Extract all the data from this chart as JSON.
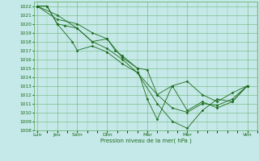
{
  "background_color": "#c5e8e8",
  "grid_color": "#55aa55",
  "line_color": "#1a6a1a",
  "marker_color": "#1a6a1a",
  "xlabel_text": "Pression niveau de la mer( hPa )",
  "ylim": [
    1008,
    1022.5
  ],
  "yticks": [
    1008,
    1009,
    1010,
    1011,
    1012,
    1013,
    1014,
    1015,
    1016,
    1017,
    1018,
    1019,
    1020,
    1021,
    1022
  ],
  "x_labels": [
    "Lun",
    "Jeu",
    "Sam",
    "Dim",
    "Mar",
    "Mer",
    "Ven"
  ],
  "x_major_ticks": [
    0,
    2,
    4,
    7,
    11,
    15,
    21
  ],
  "xlim": [
    -0.3,
    22.0
  ],
  "series": [
    {
      "x": [
        0,
        2,
        4,
        5.5,
        7,
        8.5,
        10,
        11,
        12,
        13.5,
        15,
        16.5,
        18,
        19.5,
        21
      ],
      "y": [
        1022,
        1021,
        1019.5,
        1018,
        1018.3,
        1016.2,
        1015,
        1011.5,
        1009.2,
        1013,
        1013.5,
        1012,
        1011.2,
        1012.2,
        1013
      ]
    },
    {
      "x": [
        0,
        2,
        4,
        5.5,
        7,
        7.8,
        8.5,
        10,
        11,
        12,
        13.5,
        15,
        16.5,
        18,
        19.5,
        21
      ],
      "y": [
        1022,
        1020.5,
        1020,
        1019,
        1018.3,
        1017,
        1016.4,
        1015,
        1014.8,
        1012,
        1013,
        1010.2,
        1011.2,
        1010.5,
        1011.2,
        1013
      ]
    },
    {
      "x": [
        0,
        1.0,
        2,
        2.8,
        4,
        5.5,
        7,
        8.5,
        10,
        12,
        13.5,
        15,
        16.5,
        18,
        19.5,
        21
      ],
      "y": [
        1022,
        1022,
        1020,
        1019.8,
        1019.5,
        1018,
        1017.2,
        1016,
        1014.5,
        1011,
        1009,
        1008.2,
        1010.2,
        1011.5,
        1011.2,
        1013
      ]
    },
    {
      "x": [
        0,
        1.0,
        2,
        3.5,
        4,
        5.5,
        7,
        8.5,
        10,
        12,
        13.5,
        15,
        16.5,
        18,
        19.5,
        21
      ],
      "y": [
        1022,
        1022,
        1020,
        1018,
        1017,
        1017.5,
        1016.8,
        1015.5,
        1014.5,
        1012,
        1010.5,
        1010,
        1011,
        1010.8,
        1011.5,
        1013
      ]
    }
  ]
}
